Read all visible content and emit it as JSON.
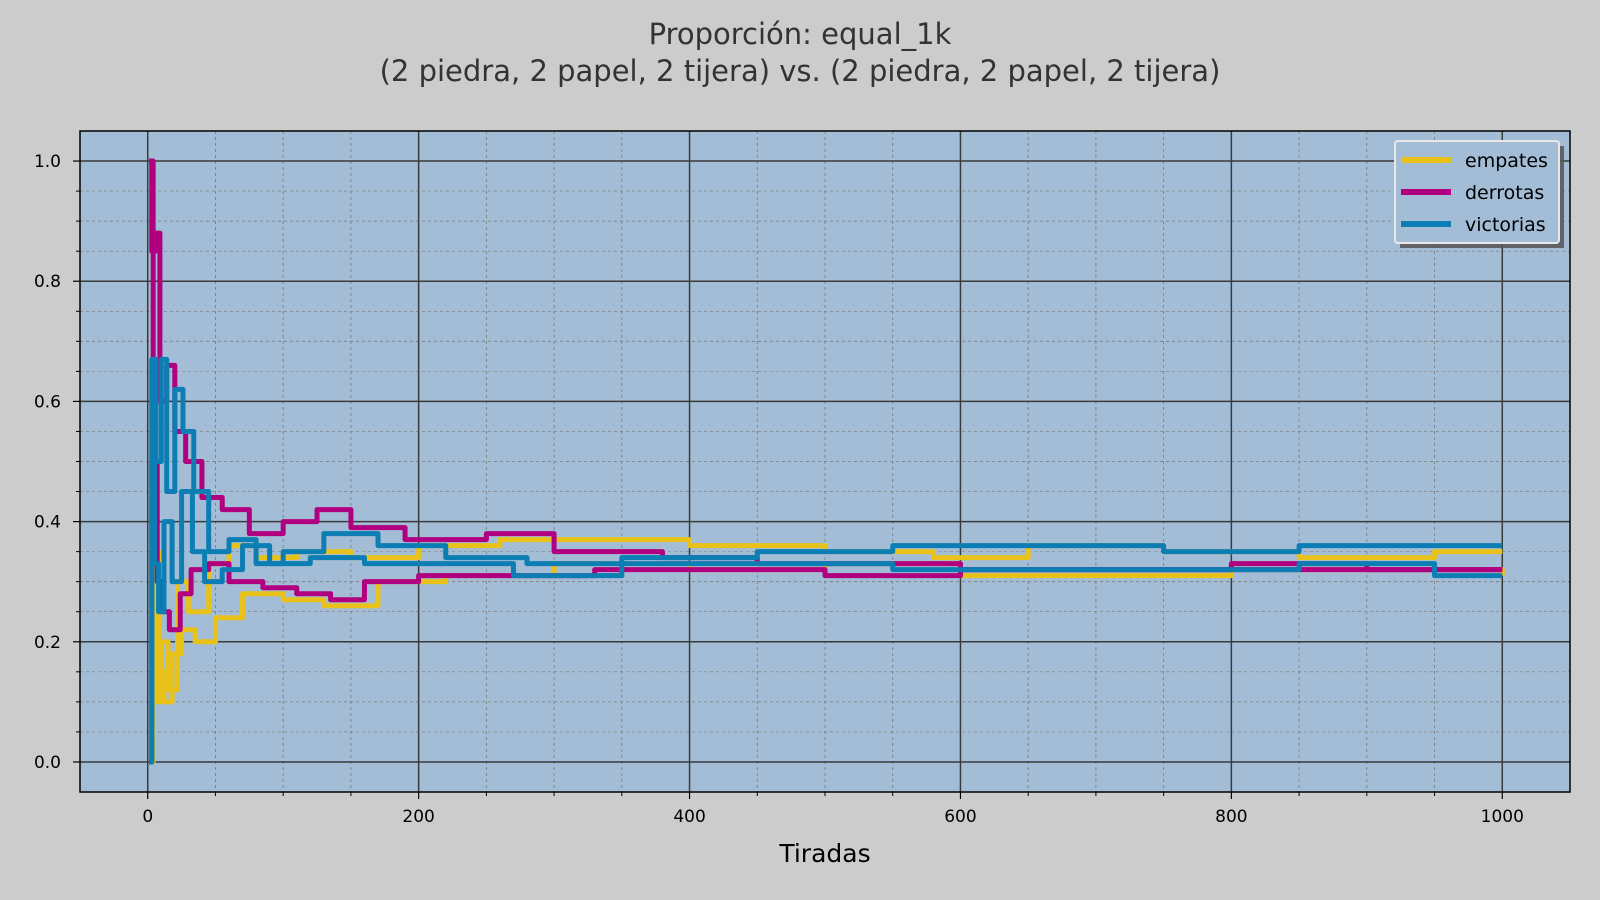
{
  "chart_data": {
    "type": "line",
    "title_line1": "Proporción: equal_1k",
    "title_line2": "(2 piedra, 2 papel, 2 tijera) vs. (2 piedra, 2 papel, 2 tijera)",
    "xlabel": "Tiradas",
    "ylabel": "",
    "xlim": [
      -50,
      1050
    ],
    "ylim": [
      -0.05,
      1.05
    ],
    "xticks": [
      0,
      200,
      400,
      600,
      800,
      1000
    ],
    "xtick_labels": [
      "0",
      "200",
      "400",
      "600",
      "800",
      "1000"
    ],
    "yticks": [
      0.0,
      0.2,
      0.4,
      0.6,
      0.8,
      1.0
    ],
    "ytick_labels": [
      "0.0",
      "0.2",
      "0.4",
      "0.6",
      "0.8",
      "1.0"
    ],
    "grid": true,
    "minor_grid": true,
    "legend_position": "top-right",
    "colors": {
      "figure_bg": "#cccccc",
      "axes_bg": "#a3bdd6",
      "empates": "#e8c21b",
      "derrotas": "#b0007f",
      "victorias": "#0c7eb3"
    },
    "series": [
      {
        "name": "empates",
        "color": "#e8c21b",
        "x": [
          1,
          3,
          5,
          8,
          12,
          18,
          25,
          35,
          50,
          70,
          100,
          130,
          170,
          220,
          300,
          400,
          500,
          600,
          700,
          800,
          900,
          1000
        ],
        "values": [
          0,
          0.1,
          0.35,
          0.15,
          0.1,
          0.18,
          0.22,
          0.2,
          0.24,
          0.28,
          0.27,
          0.26,
          0.3,
          0.31,
          0.33,
          0.32,
          0.33,
          0.31,
          0.31,
          0.32,
          0.32,
          0.31
        ]
      },
      {
        "name": "empates",
        "color": "#e8c21b",
        "x": [
          1,
          4,
          7,
          10,
          15,
          22,
          30,
          45,
          60,
          80,
          110,
          150,
          200,
          260,
          320,
          400,
          500,
          580,
          650,
          750,
          850,
          950,
          1000
        ],
        "values": [
          0.0,
          0.25,
          0.1,
          0.2,
          0.12,
          0.3,
          0.25,
          0.33,
          0.36,
          0.34,
          0.35,
          0.34,
          0.36,
          0.37,
          0.37,
          0.36,
          0.35,
          0.34,
          0.36,
          0.35,
          0.34,
          0.35,
          0.35
        ]
      },
      {
        "name": "derrotas",
        "color": "#b0007f",
        "x": [
          1,
          3,
          6,
          9,
          14,
          20,
          28,
          40,
          55,
          75,
          100,
          125,
          150,
          190,
          250,
          300,
          380,
          450,
          540,
          600,
          700,
          800,
          900,
          1000
        ],
        "values": [
          1.0,
          0.85,
          0.88,
          0.6,
          0.66,
          0.55,
          0.5,
          0.44,
          0.42,
          0.38,
          0.4,
          0.42,
          0.39,
          0.37,
          0.38,
          0.35,
          0.34,
          0.33,
          0.33,
          0.32,
          0.32,
          0.33,
          0.32,
          0.32
        ]
      },
      {
        "name": "derrotas",
        "color": "#b0007f",
        "x": [
          1,
          4,
          7,
          11,
          16,
          24,
          32,
          45,
          60,
          85,
          110,
          135,
          160,
          200,
          260,
          330,
          400,
          500,
          600,
          700,
          800,
          900,
          1000
        ],
        "values": [
          1.0,
          0.5,
          0.3,
          0.25,
          0.22,
          0.28,
          0.32,
          0.33,
          0.3,
          0.29,
          0.28,
          0.27,
          0.3,
          0.31,
          0.31,
          0.32,
          0.32,
          0.31,
          0.32,
          0.32,
          0.32,
          0.32,
          0.32
        ]
      },
      {
        "name": "victorias",
        "color": "#0c7eb3",
        "x": [
          1,
          3,
          6,
          10,
          14,
          20,
          26,
          34,
          45,
          60,
          80,
          100,
          130,
          170,
          220,
          280,
          350,
          450,
          550,
          650,
          750,
          850,
          950,
          1000
        ],
        "values": [
          0,
          0.67,
          0.5,
          0.67,
          0.45,
          0.62,
          0.55,
          0.45,
          0.35,
          0.37,
          0.33,
          0.35,
          0.38,
          0.36,
          0.34,
          0.33,
          0.34,
          0.35,
          0.36,
          0.36,
          0.35,
          0.36,
          0.36,
          0.36
        ]
      },
      {
        "name": "victorias",
        "color": "#0c7eb3",
        "x": [
          1,
          3,
          5,
          8,
          12,
          18,
          25,
          33,
          42,
          55,
          70,
          90,
          120,
          160,
          210,
          270,
          350,
          450,
          550,
          650,
          750,
          850,
          950,
          1000
        ],
        "values": [
          0,
          0.5,
          0.33,
          0.25,
          0.4,
          0.3,
          0.45,
          0.35,
          0.3,
          0.32,
          0.36,
          0.33,
          0.34,
          0.33,
          0.33,
          0.31,
          0.33,
          0.33,
          0.32,
          0.32,
          0.32,
          0.33,
          0.31,
          0.31
        ]
      }
    ],
    "legend": [
      {
        "label": "empates",
        "color": "#e8c21b"
      },
      {
        "label": "derrotas",
        "color": "#b0007f"
      },
      {
        "label": "victorias",
        "color": "#0c7eb3"
      }
    ]
  }
}
